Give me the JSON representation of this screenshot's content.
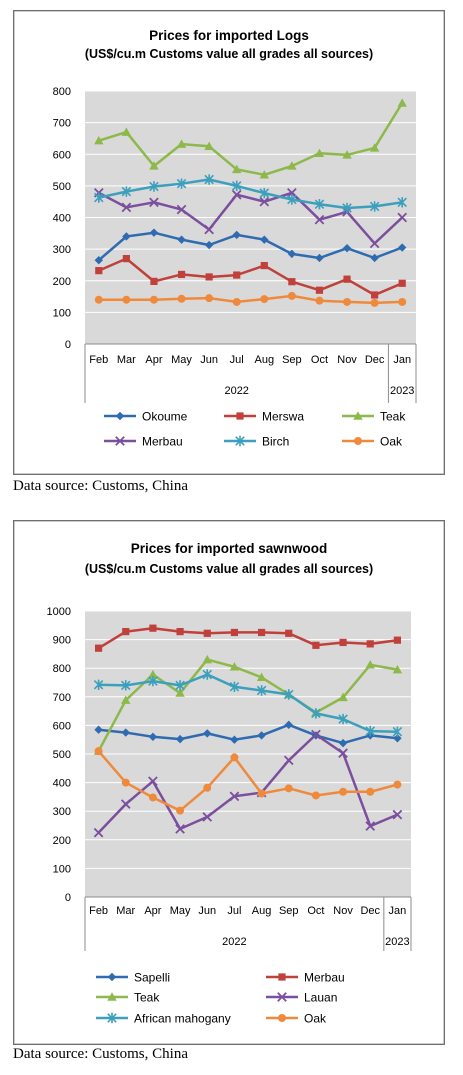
{
  "chart_data": [
    {
      "type": "line",
      "title": "Prices for imported Logs",
      "subtitle": "(US$/cu.m Customs value all grades all sources)",
      "categories": [
        "Feb",
        "Mar",
        "Apr",
        "May",
        "Jun",
        "Jul",
        "Aug",
        "Sep",
        "Oct",
        "Nov",
        "Dec",
        "Jan"
      ],
      "year_labels": [
        "2022",
        "2023"
      ],
      "ylim": [
        0,
        800
      ],
      "yticks": [
        0,
        100,
        200,
        300,
        400,
        500,
        600,
        700,
        800
      ],
      "grid": true,
      "legend_position": "bottom",
      "series": [
        {
          "name": "Okoume",
          "color": "#2e6bb0",
          "marker": "diamond",
          "values": [
            265,
            340,
            352,
            330,
            313,
            345,
            330,
            285,
            272,
            303,
            272,
            305
          ]
        },
        {
          "name": "Merswa",
          "color": "#c0403b",
          "marker": "square",
          "values": [
            232,
            270,
            198,
            220,
            212,
            218,
            248,
            197,
            170,
            205,
            155,
            192
          ]
        },
        {
          "name": "Teak",
          "color": "#8db84a",
          "marker": "triangle",
          "values": [
            643,
            670,
            563,
            632,
            625,
            552,
            535,
            563,
            603,
            598,
            620,
            762
          ]
        },
        {
          "name": "Merbau",
          "color": "#7b4f9d",
          "marker": "x",
          "values": [
            478,
            432,
            448,
            425,
            362,
            472,
            450,
            478,
            393,
            418,
            318,
            400
          ]
        },
        {
          "name": "Birch",
          "color": "#3ca0bd",
          "marker": "star",
          "values": [
            463,
            482,
            498,
            507,
            520,
            500,
            477,
            457,
            442,
            430,
            435,
            448
          ]
        },
        {
          "name": "Oak",
          "color": "#ef8a3c",
          "marker": "circle",
          "values": [
            140,
            140,
            140,
            143,
            145,
            133,
            142,
            152,
            137,
            133,
            130,
            133
          ]
        }
      ]
    },
    {
      "type": "line",
      "title": "Prices for imported sawnwood",
      "subtitle": "(US$/cu.m Customs value all grades all sources)",
      "categories": [
        "Feb",
        "Mar",
        "Apr",
        "May",
        "Jun",
        "Jul",
        "Aug",
        "Sep",
        "Oct",
        "Nov",
        "Dec",
        "Jan"
      ],
      "year_labels": [
        "2022",
        "2023"
      ],
      "ylim": [
        0,
        1000
      ],
      "yticks": [
        0,
        100,
        200,
        300,
        400,
        500,
        600,
        700,
        800,
        900,
        1000
      ],
      "grid": true,
      "legend_position": "bottom",
      "series": [
        {
          "name": "Sapelli",
          "color": "#2e6bb0",
          "marker": "diamond",
          "values": [
            585,
            575,
            560,
            552,
            572,
            550,
            565,
            602,
            565,
            538,
            565,
            555
          ]
        },
        {
          "name": "Merbau",
          "color": "#c0403b",
          "marker": "square",
          "values": [
            870,
            928,
            940,
            928,
            922,
            925,
            925,
            922,
            880,
            890,
            885,
            898
          ]
        },
        {
          "name": "Teak",
          "color": "#8db84a",
          "marker": "triangle",
          "values": [
            510,
            688,
            778,
            713,
            830,
            805,
            768,
            708,
            645,
            698,
            812,
            795
          ]
        },
        {
          "name": "Lauan",
          "color": "#7b4f9d",
          "marker": "x",
          "values": [
            225,
            325,
            405,
            238,
            280,
            352,
            365,
            478,
            568,
            503,
            248,
            288
          ]
        },
        {
          "name": "African mahogany",
          "color": "#3ca0bd",
          "marker": "star",
          "values": [
            742,
            740,
            755,
            740,
            778,
            735,
            722,
            708,
            642,
            622,
            580,
            578
          ]
        },
        {
          "name": "Oak",
          "color": "#ef8a3c",
          "marker": "circle",
          "values": [
            510,
            400,
            348,
            302,
            382,
            488,
            362,
            380,
            355,
            368,
            368,
            393
          ]
        }
      ]
    }
  ],
  "sources": [
    "Data source: Customs, China",
    "Data source: Customs, China"
  ]
}
